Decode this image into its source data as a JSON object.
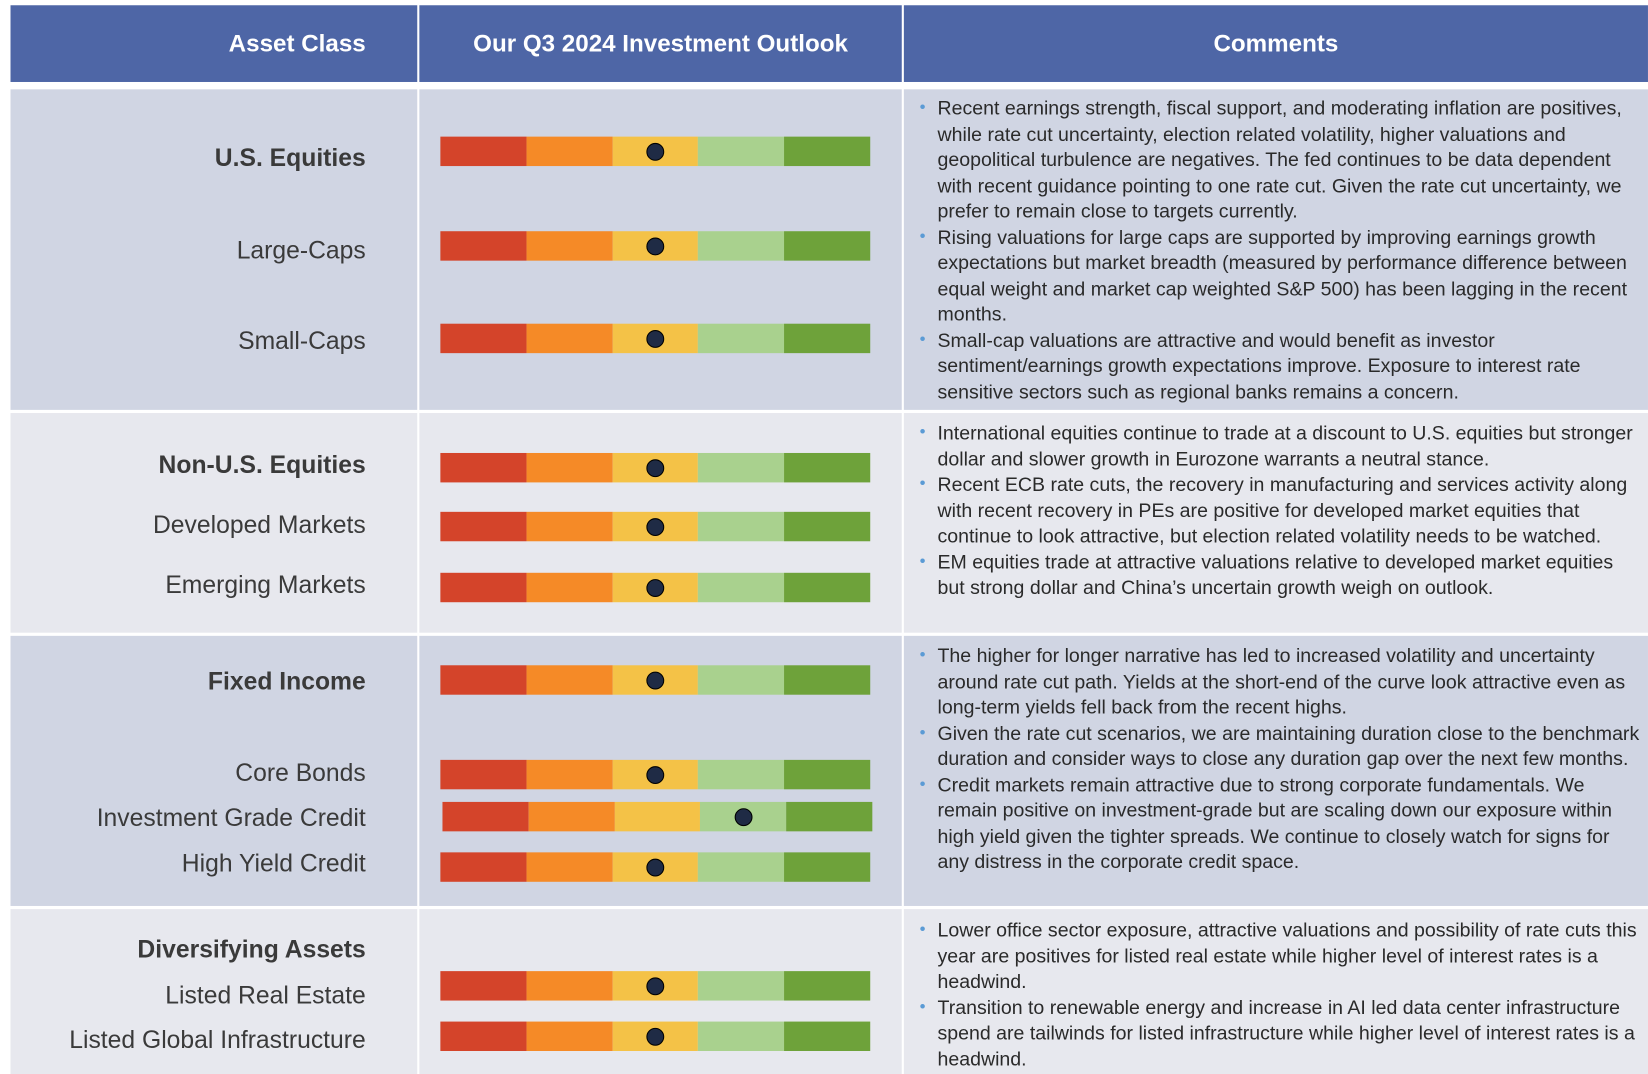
{
  "header": {
    "columns": [
      "Asset Class",
      "Our Q3 2024 Investment Outlook",
      "Comments"
    ]
  },
  "scale_colors": [
    "#d4442a",
    "#f58a27",
    "#f4c247",
    "#a9d18e",
    "#6ea23a"
  ],
  "sections": [
    {
      "rows": [
        {
          "label": "U.S. Equities",
          "outlook": 3
        },
        {
          "label": "Large-Caps",
          "outlook": 3
        },
        {
          "label": "Small-Caps",
          "outlook": 3
        }
      ],
      "comments": [
        "Recent earnings strength, fiscal support, and moderating inflation are positives, while rate cut uncertainty, election related volatility, higher valuations and geopolitical turbulence are negatives. The fed continues to be data dependent with recent guidance pointing to one rate cut. Given the rate cut uncertainty, we prefer to remain close to targets currently.",
        "Rising valuations for large caps are supported by improving earnings growth expectations but market breadth (measured by performance difference between equal weight and market cap weighted S&P 500) has been lagging in the recent months.",
        "Small-cap valuations are attractive and would benefit as investor sentiment/earnings growth expectations improve. Exposure to interest rate sensitive sectors such as regional banks remains a concern."
      ]
    },
    {
      "rows": [
        {
          "label": "Non-U.S. Equities",
          "outlook": 3
        },
        {
          "label": "Developed Markets",
          "outlook": 3
        },
        {
          "label": "Emerging Markets",
          "outlook": 3
        }
      ],
      "comments": [
        "International equities continue to trade at a discount to U.S. equities but stronger dollar and slower growth in Eurozone warrants a neutral stance.",
        "Recent ECB rate cuts, the recovery in manufacturing and services activity along with recent recovery in PEs are positive for developed market equities that continue to look attractive, but election related volatility needs to be watched.",
        "EM equities trade at attractive valuations relative to developed market equities but strong dollar and China’s uncertain growth weigh on outlook."
      ]
    },
    {
      "rows": [
        {
          "label": "Fixed Income",
          "outlook": 3
        },
        {
          "label": "Core Bonds",
          "outlook": 3
        },
        {
          "label": "Investment Grade Credit",
          "outlook": 4
        },
        {
          "label": "High Yield Credit",
          "outlook": 3
        }
      ],
      "comments": [
        "The higher for longer narrative has led to increased volatility and uncertainty around rate cut path. Yields at the short-end of the curve look attractive even as long-term yields fell back from the recent highs.",
        "Given the rate cut scenarios, we are maintaining duration close to the benchmark duration and consider ways to close any duration gap over the next few months.",
        "Credit markets remain attractive due to strong corporate fundamentals. We remain positive on investment-grade but are scaling down our exposure within high yield given the tighter spreads. We continue to closely watch for signs for any distress in the corporate credit space."
      ]
    },
    {
      "rows": [
        {
          "label": "Diversifying Assets"
        },
        {
          "label": "Listed Real Estate",
          "outlook": 3
        },
        {
          "label": "Listed Global Infrastructure",
          "outlook": 3
        }
      ],
      "comments": [
        "Lower office sector exposure, attractive valuations and possibility of rate cuts this year are positives for listed real estate while higher level of interest rates is a headwind.",
        "Transition to renewable energy and increase in AI led data center infrastructure spend are tailwinds for listed infrastructure while higher level of interest rates is a headwind."
      ]
    }
  ]
}
